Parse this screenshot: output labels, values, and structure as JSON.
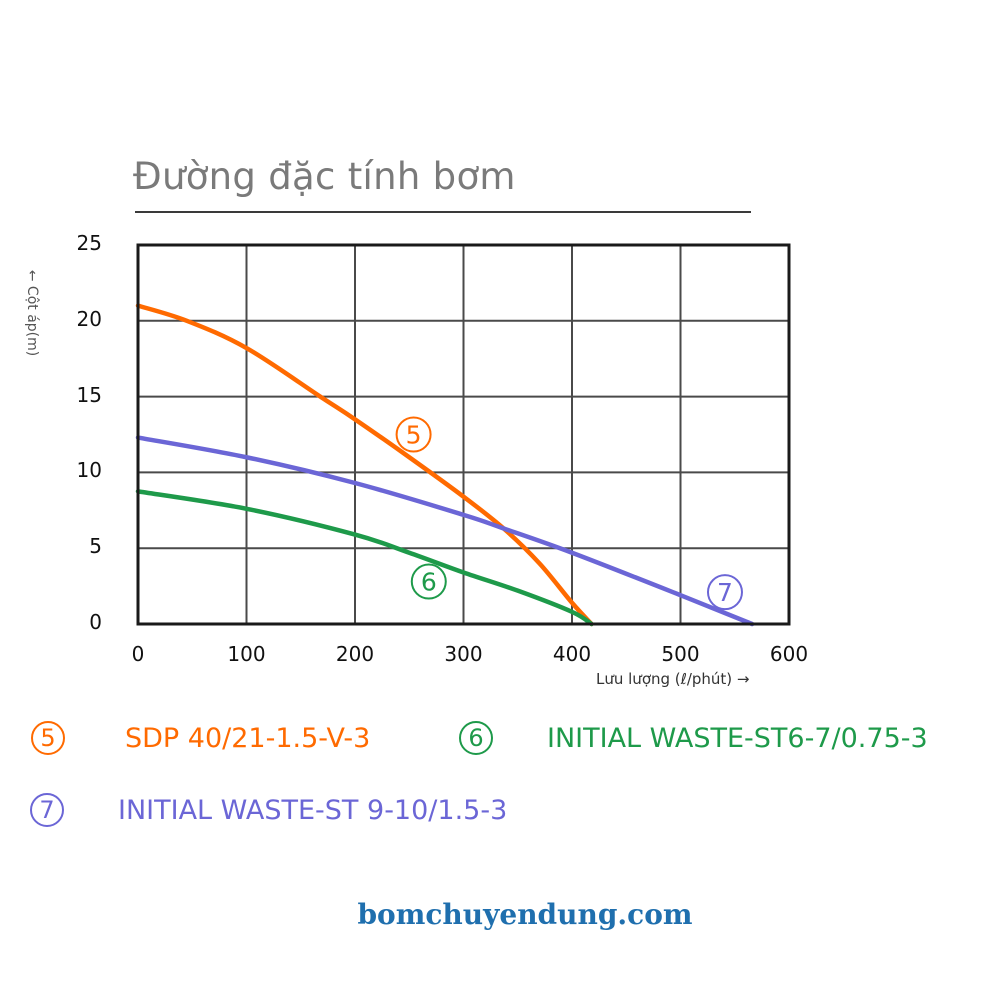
{
  "title": "Đường đặc tính bơm",
  "footer": "bomchuyendung.com",
  "chart_data": {
    "type": "line",
    "title": "Đường đặc tính bơm",
    "xlabel": "Lưu lượng (ℓ/phút) →",
    "ylabel": "← Cột áp(m)",
    "xlim": [
      0,
      600
    ],
    "ylim": [
      0,
      25
    ],
    "x_ticks": [
      "0",
      "100",
      "200",
      "300",
      "400",
      "500",
      "600"
    ],
    "y_ticks": [
      "0",
      "5",
      "10",
      "15",
      "20",
      "25"
    ],
    "grid": true,
    "legend_position": "bottom",
    "series": [
      {
        "id": "5",
        "name": "SDP 40/21-1.5-V-3",
        "color": "#FF6A00",
        "x": [
          0,
          45,
          100,
          168,
          200,
          250,
          300,
          337,
          370,
          400,
          418
        ],
        "y": [
          21.0,
          20.0,
          18.2,
          15.0,
          13.5,
          11.0,
          8.4,
          6.3,
          4.0,
          1.4,
          0
        ]
      },
      {
        "id": "6",
        "name": "INITIAL WASTE-ST6-7/0.75-3",
        "color": "#1E9A4A",
        "x": [
          0,
          100,
          200,
          250,
          300,
          350,
          400,
          418
        ],
        "y": [
          8.75,
          7.6,
          5.9,
          4.7,
          3.4,
          2.2,
          0.8,
          0
        ]
      },
      {
        "id": "7",
        "name": "INITIAL WASTE-ST 9-10/1.5-3",
        "color": "#6B66D6",
        "x": [
          0,
          100,
          200,
          300,
          337,
          400,
          500,
          566
        ],
        "y": [
          12.3,
          11.0,
          9.3,
          7.2,
          6.3,
          4.7,
          1.9,
          0
        ]
      }
    ],
    "annotations": [
      {
        "label": "5",
        "x": 254,
        "y": 12.5,
        "color": "#FF6A00"
      },
      {
        "label": "6",
        "x": 268,
        "y": 2.8,
        "color": "#1E9A4A"
      },
      {
        "label": "7",
        "x": 541,
        "y": 2.1,
        "color": "#6B66D6"
      }
    ]
  },
  "legend": [
    {
      "marker": "5",
      "label": "SDP 40/21-1.5-V-3",
      "color": "#FF6A00"
    },
    {
      "marker": "6",
      "label": "INITIAL WASTE-ST6-7/0.75-3",
      "color": "#1E9A4A"
    },
    {
      "marker": "7",
      "label": "INITIAL WASTE-ST 9-10/1.5-3",
      "color": "#6B66D6"
    }
  ]
}
